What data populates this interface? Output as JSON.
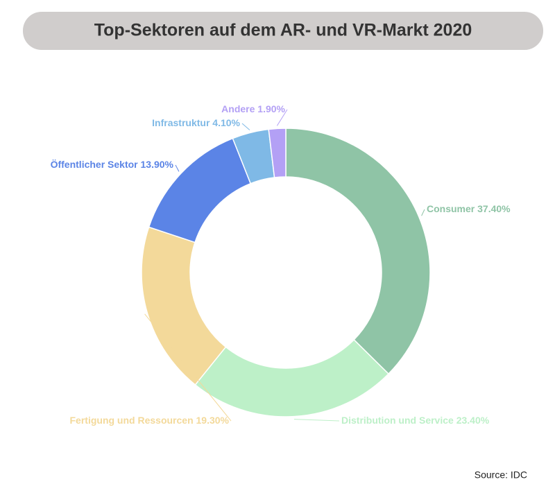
{
  "chart_data": {
    "type": "donut",
    "title": "Top-Sektoren auf dem AR- und VR-Markt 2020",
    "categories": [
      "Consumer",
      "Distribution und Service",
      "Fertigung und Ressourcen",
      "Öffentlicher Sektor",
      "Infrastruktur",
      "Andere"
    ],
    "values": [
      37.4,
      23.4,
      19.3,
      13.9,
      4.1,
      1.9
    ],
    "value_labels": [
      "37.40%",
      "23.40%",
      "19.30%",
      "13.90%",
      "4.10%",
      "1.90%"
    ],
    "colors": [
      "#8fc4a6",
      "#bdf0c8",
      "#f3d99a",
      "#5b84e6",
      "#7fb9e6",
      "#b3a0f5"
    ],
    "source": "Source: IDC"
  }
}
